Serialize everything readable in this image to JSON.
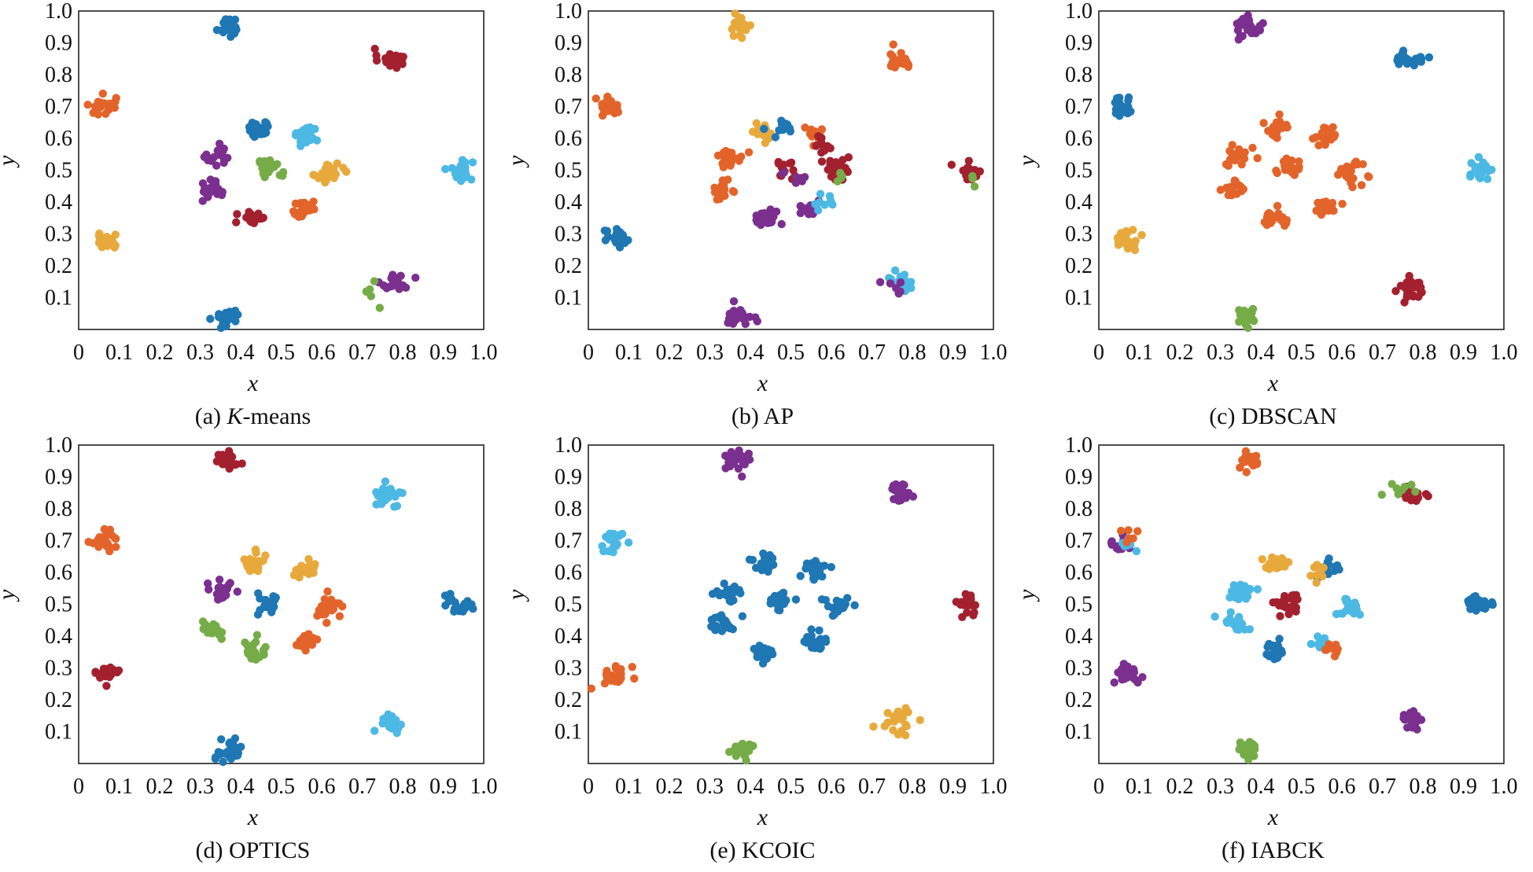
{
  "palette": {
    "blue": "#1f77b4",
    "orange": "#e3642a",
    "gold": "#e8a93c",
    "purple": "#7b2f8f",
    "green": "#76ac48",
    "cyan": "#4cb8e4",
    "red": "#a3202f"
  },
  "chart_data": [
    {
      "type": "scatter",
      "caption_prefix": "(a) ",
      "caption_italic": "K",
      "caption_rest": "-means",
      "xlabel": "x",
      "ylabel": "y",
      "xlim": [
        0,
        1.0
      ],
      "ylim": [
        0,
        1.0
      ],
      "xticks": [
        "0",
        "0.1",
        "0.2",
        "0.3",
        "0.4",
        "0.5",
        "0.6",
        "0.7",
        "0.8",
        "0.9",
        "1.0"
      ],
      "yticks": [
        "0.1",
        "0.2",
        "0.3",
        "0.4",
        "0.5",
        "0.6",
        "0.7",
        "0.8",
        "0.9",
        "1.0"
      ],
      "clusters": [
        {
          "color": "blue",
          "cx": 0.37,
          "cy": 0.95,
          "n": 24
        },
        {
          "color": "red",
          "cx": 0.77,
          "cy": 0.85,
          "n": 24
        },
        {
          "color": "orange",
          "cx": 0.06,
          "cy": 0.7,
          "n": 24
        },
        {
          "color": "gold",
          "cx": 0.07,
          "cy": 0.28,
          "n": 24
        },
        {
          "color": "cyan",
          "cx": 0.94,
          "cy": 0.5,
          "n": 24
        },
        {
          "color": "purple",
          "cx": 0.78,
          "cy": 0.15,
          "n": 22
        },
        {
          "color": "green",
          "cx": 0.73,
          "cy": 0.11,
          "n": 6
        },
        {
          "color": "blue",
          "cx": 0.37,
          "cy": 0.04,
          "n": 24
        },
        {
          "color": "blue",
          "cx": 0.44,
          "cy": 0.63,
          "n": 24
        },
        {
          "color": "cyan",
          "cx": 0.56,
          "cy": 0.61,
          "n": 22
        },
        {
          "color": "purple",
          "cx": 0.35,
          "cy": 0.54,
          "n": 20
        },
        {
          "color": "purple",
          "cx": 0.33,
          "cy": 0.44,
          "n": 20
        },
        {
          "color": "green",
          "cx": 0.47,
          "cy": 0.51,
          "n": 22
        },
        {
          "color": "gold",
          "cx": 0.62,
          "cy": 0.49,
          "n": 22
        },
        {
          "color": "red",
          "cx": 0.43,
          "cy": 0.35,
          "n": 22
        },
        {
          "color": "orange",
          "cx": 0.56,
          "cy": 0.38,
          "n": 22
        }
      ]
    },
    {
      "type": "scatter",
      "caption_prefix": "(b) ",
      "caption_italic": "",
      "caption_rest": "AP",
      "xlabel": "x",
      "ylabel": "y",
      "xlim": [
        0,
        1.0
      ],
      "ylim": [
        0,
        1.0
      ],
      "xticks": [
        "0",
        "0.1",
        "0.2",
        "0.3",
        "0.4",
        "0.5",
        "0.6",
        "0.7",
        "0.8",
        "0.9",
        "1.0"
      ],
      "yticks": [
        "0.1",
        "0.2",
        "0.3",
        "0.4",
        "0.5",
        "0.6",
        "0.7",
        "0.8",
        "0.9",
        "1.0"
      ],
      "clusters": [
        {
          "color": "gold",
          "cx": 0.37,
          "cy": 0.95,
          "n": 24
        },
        {
          "color": "orange",
          "cx": 0.77,
          "cy": 0.85,
          "n": 24
        },
        {
          "color": "orange",
          "cx": 0.06,
          "cy": 0.7,
          "n": 24
        },
        {
          "color": "blue",
          "cx": 0.07,
          "cy": 0.28,
          "n": 24
        },
        {
          "color": "red",
          "cx": 0.94,
          "cy": 0.5,
          "n": 22
        },
        {
          "color": "green",
          "cx": 0.94,
          "cy": 0.47,
          "n": 4
        },
        {
          "color": "cyan",
          "cx": 0.78,
          "cy": 0.15,
          "n": 20
        },
        {
          "color": "purple",
          "cx": 0.75,
          "cy": 0.12,
          "n": 6
        },
        {
          "color": "purple",
          "cx": 0.37,
          "cy": 0.04,
          "n": 24
        },
        {
          "color": "gold",
          "cx": 0.43,
          "cy": 0.62,
          "n": 14
        },
        {
          "color": "blue",
          "cx": 0.48,
          "cy": 0.63,
          "n": 12
        },
        {
          "color": "orange",
          "cx": 0.56,
          "cy": 0.61,
          "n": 14
        },
        {
          "color": "red",
          "cx": 0.58,
          "cy": 0.58,
          "n": 10
        },
        {
          "color": "orange",
          "cx": 0.35,
          "cy": 0.54,
          "n": 20
        },
        {
          "color": "orange",
          "cx": 0.33,
          "cy": 0.44,
          "n": 20
        },
        {
          "color": "red",
          "cx": 0.49,
          "cy": 0.5,
          "n": 14
        },
        {
          "color": "purple",
          "cx": 0.5,
          "cy": 0.49,
          "n": 6
        },
        {
          "color": "red",
          "cx": 0.62,
          "cy": 0.5,
          "n": 20
        },
        {
          "color": "green",
          "cx": 0.62,
          "cy": 0.47,
          "n": 4
        },
        {
          "color": "purple",
          "cx": 0.44,
          "cy": 0.35,
          "n": 22
        },
        {
          "color": "purple",
          "cx": 0.55,
          "cy": 0.38,
          "n": 14
        },
        {
          "color": "cyan",
          "cx": 0.58,
          "cy": 0.4,
          "n": 8
        }
      ]
    },
    {
      "type": "scatter",
      "caption_prefix": "(c) ",
      "caption_italic": "",
      "caption_rest": "DBSCAN",
      "xlabel": "x",
      "ylabel": "y",
      "xlim": [
        0,
        1.0
      ],
      "ylim": [
        0,
        1.0
      ],
      "xticks": [
        "0",
        "0.1",
        "0.2",
        "0.3",
        "0.4",
        "0.5",
        "0.6",
        "0.7",
        "0.8",
        "0.9",
        "1.0"
      ],
      "yticks": [
        "0.1",
        "0.2",
        "0.3",
        "0.4",
        "0.5",
        "0.6",
        "0.7",
        "0.8",
        "0.9",
        "1.0"
      ],
      "clusters": [
        {
          "color": "purple",
          "cx": 0.37,
          "cy": 0.95,
          "n": 24
        },
        {
          "color": "blue",
          "cx": 0.77,
          "cy": 0.85,
          "n": 24
        },
        {
          "color": "blue",
          "cx": 0.06,
          "cy": 0.7,
          "n": 24
        },
        {
          "color": "gold",
          "cx": 0.07,
          "cy": 0.28,
          "n": 24
        },
        {
          "color": "cyan",
          "cx": 0.94,
          "cy": 0.5,
          "n": 24
        },
        {
          "color": "red",
          "cx": 0.77,
          "cy": 0.13,
          "n": 24
        },
        {
          "color": "green",
          "cx": 0.37,
          "cy": 0.04,
          "n": 24
        },
        {
          "color": "orange",
          "cx": 0.44,
          "cy": 0.63,
          "n": 24
        },
        {
          "color": "orange",
          "cx": 0.56,
          "cy": 0.61,
          "n": 22
        },
        {
          "color": "orange",
          "cx": 0.35,
          "cy": 0.54,
          "n": 20
        },
        {
          "color": "orange",
          "cx": 0.33,
          "cy": 0.44,
          "n": 20
        },
        {
          "color": "orange",
          "cx": 0.47,
          "cy": 0.51,
          "n": 22
        },
        {
          "color": "orange",
          "cx": 0.62,
          "cy": 0.49,
          "n": 22
        },
        {
          "color": "orange",
          "cx": 0.43,
          "cy": 0.35,
          "n": 22
        },
        {
          "color": "orange",
          "cx": 0.56,
          "cy": 0.38,
          "n": 22
        }
      ]
    },
    {
      "type": "scatter",
      "caption_prefix": "(d) ",
      "caption_italic": "",
      "caption_rest": "OPTICS",
      "xlabel": "x",
      "ylabel": "y",
      "xlim": [
        0,
        1.0
      ],
      "ylim": [
        0,
        1.0
      ],
      "xticks": [
        "0",
        "0.1",
        "0.2",
        "0.3",
        "0.4",
        "0.5",
        "0.6",
        "0.7",
        "0.8",
        "0.9",
        "1.0"
      ],
      "yticks": [
        "0.1",
        "0.2",
        "0.3",
        "0.4",
        "0.5",
        "0.6",
        "0.7",
        "0.8",
        "0.9",
        "1.0"
      ],
      "clusters": [
        {
          "color": "red",
          "cx": 0.37,
          "cy": 0.95,
          "n": 24
        },
        {
          "color": "cyan",
          "cx": 0.77,
          "cy": 0.85,
          "n": 24
        },
        {
          "color": "orange",
          "cx": 0.06,
          "cy": 0.7,
          "n": 24
        },
        {
          "color": "red",
          "cx": 0.07,
          "cy": 0.28,
          "n": 24
        },
        {
          "color": "blue",
          "cx": 0.94,
          "cy": 0.5,
          "n": 24
        },
        {
          "color": "cyan",
          "cx": 0.77,
          "cy": 0.13,
          "n": 24
        },
        {
          "color": "blue",
          "cx": 0.37,
          "cy": 0.04,
          "n": 24
        },
        {
          "color": "gold",
          "cx": 0.44,
          "cy": 0.63,
          "n": 24
        },
        {
          "color": "gold",
          "cx": 0.56,
          "cy": 0.61,
          "n": 22
        },
        {
          "color": "purple",
          "cx": 0.35,
          "cy": 0.54,
          "n": 20
        },
        {
          "color": "green",
          "cx": 0.33,
          "cy": 0.42,
          "n": 20
        },
        {
          "color": "blue",
          "cx": 0.47,
          "cy": 0.5,
          "n": 22
        },
        {
          "color": "orange",
          "cx": 0.62,
          "cy": 0.49,
          "n": 22
        },
        {
          "color": "green",
          "cx": 0.43,
          "cy": 0.35,
          "n": 22
        },
        {
          "color": "orange",
          "cx": 0.56,
          "cy": 0.38,
          "n": 22
        }
      ]
    },
    {
      "type": "scatter",
      "caption_prefix": "(e) ",
      "caption_italic": "",
      "caption_rest": "KCOIC",
      "xlabel": "x",
      "ylabel": "y",
      "xlim": [
        0,
        1.0
      ],
      "ylim": [
        0,
        1.0
      ],
      "xticks": [
        "0",
        "0.1",
        "0.2",
        "0.3",
        "0.4",
        "0.5",
        "0.6",
        "0.7",
        "0.8",
        "0.9",
        "1.0"
      ],
      "yticks": [
        "0.1",
        "0.2",
        "0.3",
        "0.4",
        "0.5",
        "0.6",
        "0.7",
        "0.8",
        "0.9",
        "1.0"
      ],
      "clusters": [
        {
          "color": "purple",
          "cx": 0.37,
          "cy": 0.95,
          "n": 24
        },
        {
          "color": "purple",
          "cx": 0.77,
          "cy": 0.85,
          "n": 24
        },
        {
          "color": "cyan",
          "cx": 0.06,
          "cy": 0.7,
          "n": 24
        },
        {
          "color": "orange",
          "cx": 0.07,
          "cy": 0.28,
          "n": 24
        },
        {
          "color": "red",
          "cx": 0.94,
          "cy": 0.5,
          "n": 24
        },
        {
          "color": "gold",
          "cx": 0.77,
          "cy": 0.13,
          "n": 24
        },
        {
          "color": "green",
          "cx": 0.37,
          "cy": 0.04,
          "n": 24
        },
        {
          "color": "blue",
          "cx": 0.44,
          "cy": 0.63,
          "n": 24
        },
        {
          "color": "blue",
          "cx": 0.56,
          "cy": 0.61,
          "n": 22
        },
        {
          "color": "blue",
          "cx": 0.35,
          "cy": 0.54,
          "n": 20
        },
        {
          "color": "blue",
          "cx": 0.33,
          "cy": 0.44,
          "n": 20
        },
        {
          "color": "blue",
          "cx": 0.47,
          "cy": 0.51,
          "n": 22
        },
        {
          "color": "blue",
          "cx": 0.62,
          "cy": 0.49,
          "n": 22
        },
        {
          "color": "blue",
          "cx": 0.43,
          "cy": 0.35,
          "n": 22
        },
        {
          "color": "blue",
          "cx": 0.56,
          "cy": 0.38,
          "n": 22
        }
      ]
    },
    {
      "type": "scatter",
      "caption_prefix": "(f) ",
      "caption_italic": "",
      "caption_rest": "IABCK",
      "xlabel": "x",
      "ylabel": "y",
      "xlim": [
        0,
        1.0
      ],
      "ylim": [
        0,
        1.0
      ],
      "xticks": [
        "0",
        "0.1",
        "0.2",
        "0.3",
        "0.4",
        "0.5",
        "0.6",
        "0.7",
        "0.8",
        "0.9",
        "1.0"
      ],
      "yticks": [
        "0.1",
        "0.2",
        "0.3",
        "0.4",
        "0.5",
        "0.6",
        "0.7",
        "0.8",
        "0.9",
        "1.0"
      ],
      "clusters": [
        {
          "color": "orange",
          "cx": 0.37,
          "cy": 0.95,
          "n": 24
        },
        {
          "color": "red",
          "cx": 0.78,
          "cy": 0.84,
          "n": 20
        },
        {
          "color": "green",
          "cx": 0.75,
          "cy": 0.86,
          "n": 8
        },
        {
          "color": "purple",
          "cx": 0.05,
          "cy": 0.69,
          "n": 14
        },
        {
          "color": "cyan",
          "cx": 0.07,
          "cy": 0.69,
          "n": 8
        },
        {
          "color": "orange",
          "cx": 0.07,
          "cy": 0.72,
          "n": 6
        },
        {
          "color": "purple",
          "cx": 0.07,
          "cy": 0.28,
          "n": 24
        },
        {
          "color": "blue",
          "cx": 0.94,
          "cy": 0.5,
          "n": 24
        },
        {
          "color": "purple",
          "cx": 0.77,
          "cy": 0.13,
          "n": 24
        },
        {
          "color": "green",
          "cx": 0.37,
          "cy": 0.04,
          "n": 24
        },
        {
          "color": "gold",
          "cx": 0.44,
          "cy": 0.63,
          "n": 24
        },
        {
          "color": "blue",
          "cx": 0.57,
          "cy": 0.61,
          "n": 14
        },
        {
          "color": "gold",
          "cx": 0.54,
          "cy": 0.6,
          "n": 8
        },
        {
          "color": "cyan",
          "cx": 0.35,
          "cy": 0.54,
          "n": 20
        },
        {
          "color": "cyan",
          "cx": 0.33,
          "cy": 0.44,
          "n": 20
        },
        {
          "color": "red",
          "cx": 0.47,
          "cy": 0.5,
          "n": 22
        },
        {
          "color": "cyan",
          "cx": 0.62,
          "cy": 0.49,
          "n": 20
        },
        {
          "color": "blue",
          "cx": 0.43,
          "cy": 0.35,
          "n": 22
        },
        {
          "color": "cyan",
          "cx": 0.54,
          "cy": 0.39,
          "n": 10
        },
        {
          "color": "orange",
          "cx": 0.58,
          "cy": 0.36,
          "n": 12
        }
      ]
    }
  ]
}
